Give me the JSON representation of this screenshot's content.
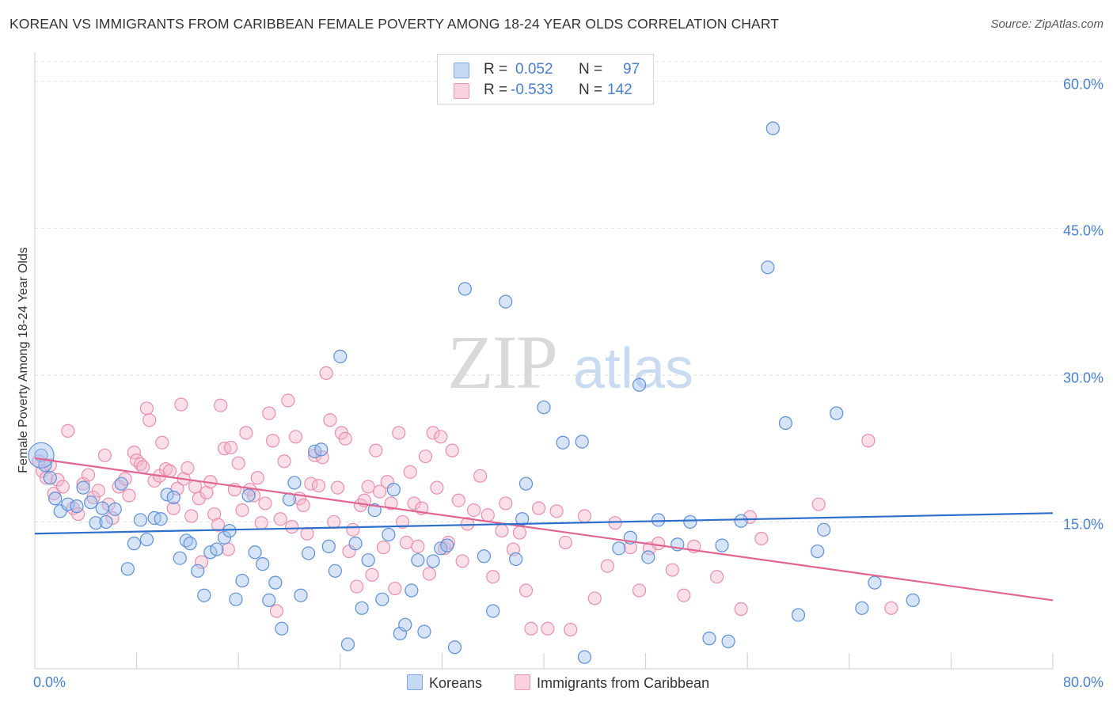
{
  "title": "KOREAN VS IMMIGRANTS FROM CARIBBEAN FEMALE POVERTY AMONG 18-24 YEAR OLDS CORRELATION CHART",
  "source": "Source: ZipAtlas.com",
  "watermark": {
    "zip": "ZIP",
    "atlas": "atlas"
  },
  "legend": {
    "r_label": "R =",
    "n_label": "N =",
    "rows": [
      {
        "r": "0.052",
        "n": "97",
        "color": "#a7c4ef"
      },
      {
        "r": "-0.533",
        "n": "142",
        "color": "#f5b8cb"
      }
    ]
  },
  "bottom_legend": {
    "series1": "Koreans",
    "series2": "Immigrants from Caribbean"
  },
  "colors": {
    "blue": "#5b8fd6",
    "blue_fill": "#a7c4ef",
    "blue_line": "#2f6fcc",
    "pink": "#e98fab",
    "pink_fill": "#f5b8cb",
    "pink_line": "#e06592",
    "axis_text": "#4a7fcc"
  },
  "chart_data": {
    "type": "scatter",
    "title": "KOREAN VS IMMIGRANTS FROM CARIBBEAN FEMALE POVERTY AMONG 18-24 YEAR OLDS CORRELATION CHART",
    "xlabel": "",
    "ylabel": "Female Poverty Among 18-24 Year Olds",
    "xlim": [
      0,
      80
    ],
    "ylim": [
      0,
      62
    ],
    "x_tick_labels": [
      "0.0%",
      "80.0%"
    ],
    "y_ticks": [
      15,
      30,
      45,
      60
    ],
    "y_tick_labels": [
      "15.0%",
      "30.0%",
      "45.0%",
      "60.0%"
    ],
    "grid": true,
    "series": [
      {
        "name": "Koreans",
        "r": 0.052,
        "n": 97,
        "trend": {
          "x": [
            0,
            80
          ],
          "y": [
            13.8,
            15.9
          ]
        },
        "points": [
          [
            0.5,
            21.8
          ],
          [
            0.8,
            20.8
          ],
          [
            1.2,
            19.5
          ],
          [
            1.6,
            17.4
          ],
          [
            2.0,
            16.1
          ],
          [
            2.6,
            16.8
          ],
          [
            3.3,
            16.6
          ],
          [
            3.8,
            18.5
          ],
          [
            4.4,
            17.0
          ],
          [
            4.8,
            14.9
          ],
          [
            5.3,
            16.4
          ],
          [
            5.6,
            15.0
          ],
          [
            6.3,
            16.3
          ],
          [
            6.8,
            18.9
          ],
          [
            7.3,
            10.2
          ],
          [
            7.8,
            12.8
          ],
          [
            8.3,
            15.2
          ],
          [
            8.8,
            13.2
          ],
          [
            9.4,
            15.4
          ],
          [
            9.9,
            15.3
          ],
          [
            10.4,
            17.8
          ],
          [
            10.9,
            17.5
          ],
          [
            11.4,
            11.3
          ],
          [
            11.9,
            13.1
          ],
          [
            12.2,
            12.8
          ],
          [
            12.8,
            10.0
          ],
          [
            13.3,
            7.5
          ],
          [
            13.8,
            11.9
          ],
          [
            14.3,
            12.2
          ],
          [
            14.9,
            13.4
          ],
          [
            15.3,
            14.1
          ],
          [
            15.8,
            7.1
          ],
          [
            16.3,
            9.0
          ],
          [
            16.8,
            17.7
          ],
          [
            17.3,
            11.9
          ],
          [
            17.9,
            10.7
          ],
          [
            18.4,
            7.0
          ],
          [
            18.9,
            8.8
          ],
          [
            19.4,
            4.1
          ],
          [
            20.0,
            17.3
          ],
          [
            20.4,
            19.0
          ],
          [
            20.9,
            7.5
          ],
          [
            21.5,
            11.8
          ],
          [
            22.0,
            22.2
          ],
          [
            22.5,
            22.4
          ],
          [
            23.1,
            12.5
          ],
          [
            23.6,
            10.0
          ],
          [
            24.0,
            31.9
          ],
          [
            24.6,
            2.5
          ],
          [
            25.2,
            12.8
          ],
          [
            25.7,
            6.2
          ],
          [
            26.2,
            11.1
          ],
          [
            26.7,
            16.2
          ],
          [
            27.3,
            7.1
          ],
          [
            27.8,
            13.7
          ],
          [
            28.2,
            18.3
          ],
          [
            28.7,
            3.6
          ],
          [
            29.1,
            4.5
          ],
          [
            29.6,
            8.0
          ],
          [
            30.1,
            11.1
          ],
          [
            30.6,
            3.8
          ],
          [
            31.3,
            11.0
          ],
          [
            31.9,
            12.3
          ],
          [
            32.4,
            12.6
          ],
          [
            33.0,
            2.2
          ],
          [
            33.8,
            38.8
          ],
          [
            35.3,
            11.5
          ],
          [
            36.0,
            5.9
          ],
          [
            37.0,
            37.5
          ],
          [
            37.8,
            11.2
          ],
          [
            38.3,
            15.3
          ],
          [
            38.6,
            18.9
          ],
          [
            40.0,
            26.7
          ],
          [
            41.5,
            23.1
          ],
          [
            43.0,
            23.2
          ],
          [
            43.2,
            1.2
          ],
          [
            45.9,
            12.3
          ],
          [
            46.8,
            13.4
          ],
          [
            47.5,
            29.0
          ],
          [
            48.2,
            11.4
          ],
          [
            49.0,
            15.2
          ],
          [
            50.5,
            12.7
          ],
          [
            51.5,
            15.0
          ],
          [
            53.0,
            3.1
          ],
          [
            54.0,
            12.6
          ],
          [
            54.5,
            2.8
          ],
          [
            55.5,
            15.1
          ],
          [
            57.6,
            41.0
          ],
          [
            58.0,
            55.2
          ],
          [
            59.0,
            25.1
          ],
          [
            60.0,
            5.5
          ],
          [
            61.5,
            12.0
          ],
          [
            62.0,
            14.2
          ],
          [
            63.0,
            26.1
          ],
          [
            65.0,
            6.2
          ],
          [
            66.0,
            8.8
          ],
          [
            69.0,
            7.0
          ]
        ]
      },
      {
        "name": "Immigrants from Caribbean",
        "r": -0.533,
        "n": 142,
        "trend": {
          "x": [
            0,
            80
          ],
          "y": [
            21.5,
            7.0
          ]
        },
        "points": [
          [
            0.3,
            21.2
          ],
          [
            0.6,
            20.2
          ],
          [
            0.9,
            19.5
          ],
          [
            1.2,
            20.8
          ],
          [
            1.5,
            17.9
          ],
          [
            1.8,
            19.3
          ],
          [
            2.2,
            18.6
          ],
          [
            2.6,
            24.3
          ],
          [
            3.0,
            16.4
          ],
          [
            3.4,
            15.8
          ],
          [
            3.8,
            18.9
          ],
          [
            4.2,
            19.8
          ],
          [
            4.6,
            17.5
          ],
          [
            5.0,
            18.2
          ],
          [
            5.5,
            21.8
          ],
          [
            5.8,
            16.8
          ],
          [
            6.1,
            15.4
          ],
          [
            6.6,
            18.6
          ],
          [
            7.1,
            19.4
          ],
          [
            7.4,
            17.7
          ],
          [
            7.8,
            22.1
          ],
          [
            8.0,
            21.3
          ],
          [
            8.3,
            20.9
          ],
          [
            8.5,
            20.6
          ],
          [
            8.8,
            26.6
          ],
          [
            9.0,
            25.4
          ],
          [
            9.4,
            19.2
          ],
          [
            9.8,
            19.7
          ],
          [
            10.0,
            23.1
          ],
          [
            10.3,
            20.4
          ],
          [
            10.6,
            20.2
          ],
          [
            10.9,
            16.4
          ],
          [
            11.2,
            18.4
          ],
          [
            11.5,
            27.0
          ],
          [
            11.7,
            19.4
          ],
          [
            12.0,
            20.5
          ],
          [
            12.3,
            15.6
          ],
          [
            12.6,
            18.6
          ],
          [
            12.9,
            17.4
          ],
          [
            13.1,
            10.9
          ],
          [
            13.5,
            18.0
          ],
          [
            13.8,
            19.1
          ],
          [
            14.1,
            15.8
          ],
          [
            14.4,
            14.7
          ],
          [
            14.6,
            26.9
          ],
          [
            14.9,
            22.5
          ],
          [
            15.2,
            12.2
          ],
          [
            15.4,
            22.6
          ],
          [
            15.7,
            18.3
          ],
          [
            16.0,
            21.0
          ],
          [
            16.3,
            16.2
          ],
          [
            16.6,
            24.1
          ],
          [
            16.9,
            18.3
          ],
          [
            17.2,
            17.7
          ],
          [
            17.5,
            19.5
          ],
          [
            17.8,
            14.9
          ],
          [
            18.1,
            16.9
          ],
          [
            18.4,
            26.1
          ],
          [
            18.7,
            23.3
          ],
          [
            19.0,
            5.9
          ],
          [
            19.3,
            15.3
          ],
          [
            19.6,
            21.2
          ],
          [
            19.9,
            27.4
          ],
          [
            20.2,
            14.5
          ],
          [
            20.5,
            23.7
          ],
          [
            20.8,
            17.4
          ],
          [
            21.1,
            16.7
          ],
          [
            21.4,
            13.8
          ],
          [
            21.7,
            18.9
          ],
          [
            22.0,
            21.8
          ],
          [
            22.3,
            18.7
          ],
          [
            22.6,
            21.6
          ],
          [
            22.9,
            30.2
          ],
          [
            23.2,
            25.4
          ],
          [
            23.5,
            15.0
          ],
          [
            23.8,
            18.5
          ],
          [
            24.1,
            24.1
          ],
          [
            24.4,
            23.5
          ],
          [
            24.7,
            12.0
          ],
          [
            25.0,
            14.2
          ],
          [
            25.3,
            8.4
          ],
          [
            25.6,
            16.7
          ],
          [
            25.9,
            17.2
          ],
          [
            26.2,
            18.6
          ],
          [
            26.5,
            9.6
          ],
          [
            26.8,
            22.3
          ],
          [
            27.1,
            18.1
          ],
          [
            27.4,
            12.4
          ],
          [
            27.7,
            19.1
          ],
          [
            28.0,
            16.9
          ],
          [
            28.3,
            8.2
          ],
          [
            28.6,
            24.1
          ],
          [
            28.9,
            15.0
          ],
          [
            29.2,
            12.9
          ],
          [
            29.5,
            20.1
          ],
          [
            29.8,
            16.9
          ],
          [
            30.1,
            12.5
          ],
          [
            30.4,
            16.4
          ],
          [
            30.7,
            21.7
          ],
          [
            31.0,
            9.7
          ],
          [
            31.3,
            24.1
          ],
          [
            31.6,
            18.5
          ],
          [
            31.9,
            23.7
          ],
          [
            32.2,
            12.3
          ],
          [
            32.5,
            12.9
          ],
          [
            32.8,
            22.3
          ],
          [
            33.3,
            17.2
          ],
          [
            33.6,
            11.0
          ],
          [
            34.0,
            14.8
          ],
          [
            34.5,
            16.2
          ],
          [
            35.0,
            19.7
          ],
          [
            35.6,
            15.7
          ],
          [
            36.0,
            9.4
          ],
          [
            36.7,
            14.1
          ],
          [
            37.0,
            16.9
          ],
          [
            37.6,
            12.2
          ],
          [
            38.1,
            13.9
          ],
          [
            38.6,
            8.0
          ],
          [
            39.0,
            4.1
          ],
          [
            39.6,
            16.4
          ],
          [
            40.3,
            4.1
          ],
          [
            41.0,
            16.1
          ],
          [
            41.7,
            12.9
          ],
          [
            42.1,
            4.0
          ],
          [
            43.2,
            15.6
          ],
          [
            44.0,
            7.2
          ],
          [
            45.0,
            10.5
          ],
          [
            45.6,
            14.9
          ],
          [
            46.8,
            12.4
          ],
          [
            47.5,
            8.0
          ],
          [
            48.3,
            12.3
          ],
          [
            49.0,
            12.8
          ],
          [
            50.1,
            10.1
          ],
          [
            51.0,
            7.5
          ],
          [
            51.8,
            12.5
          ],
          [
            53.6,
            9.4
          ],
          [
            55.5,
            6.1
          ],
          [
            56.2,
            15.5
          ],
          [
            57.1,
            13.3
          ],
          [
            61.6,
            16.8
          ],
          [
            65.5,
            23.3
          ],
          [
            67.3,
            6.2
          ]
        ]
      }
    ]
  }
}
